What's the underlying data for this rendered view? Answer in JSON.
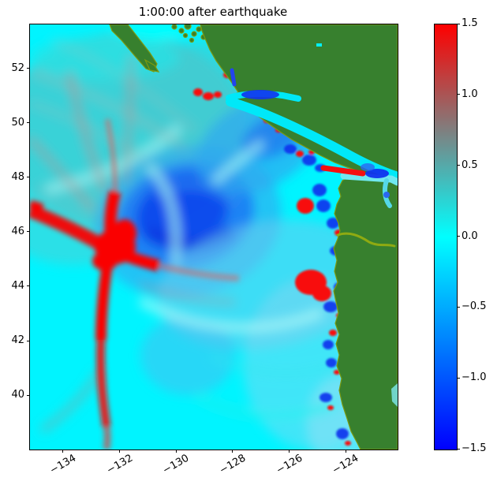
{
  "title": "1:00:00 after earthquake",
  "axes": {
    "x_tick_labels": [
      "−134",
      "−132",
      "−130",
      "−128",
      "−126",
      "−124"
    ],
    "y_tick_labels": [
      "52",
      "50",
      "48",
      "46",
      "44",
      "42",
      "40"
    ],
    "x_tick_rotation_deg": 30
  },
  "colorbar_labels": [
    "1.5",
    "1.0",
    "0.5",
    "0.0",
    "−0.5",
    "−1.0",
    "−1.5"
  ],
  "chart_data": {
    "type": "heatmap",
    "title": "1:00:00 after earthquake",
    "xlabel": "",
    "ylabel": "",
    "x_tick_values": [
      -134,
      -132,
      -130,
      -128,
      -126,
      -124
    ],
    "y_tick_values": [
      52,
      50,
      48,
      46,
      44,
      42,
      40
    ],
    "x_range_est": [
      -135.2,
      -122.2
    ],
    "y_range_est": [
      38.1,
      53.7
    ],
    "grid": false,
    "colorbar": {
      "vmin": -1.5,
      "vmax": 1.5,
      "tick_values": [
        1.5,
        1.0,
        0.5,
        0.0,
        -0.5,
        -1.0,
        -1.5
      ],
      "orientation": "vertical-right",
      "colormap_stops": [
        {
          "value": -1.5,
          "color": "#0000ff"
        },
        {
          "value": 0.0,
          "color": "#00ffff"
        },
        {
          "value": 0.75,
          "color": "#808080"
        },
        {
          "value": 1.5,
          "color": "#ff0000"
        }
      ]
    },
    "colors": {
      "ocean_zero": "#00f4ff",
      "positive_wash": "#49c9cd",
      "depression_core": "#0f46ec",
      "depression_mid": "#1e78f4",
      "light_blue": "#6fcbee",
      "uplift_red": "#fa0505",
      "land_green": "#37802e",
      "shoreline_olive": "#7c9a10",
      "strait_blue": "#1133ee"
    },
    "coarse_grid": {
      "comment": "estimated surface elevation (m) read from colors; null = land",
      "lon": [
        -135,
        -133.5,
        -132,
        -130.5,
        -129,
        -127.5,
        -126,
        -124.5
      ],
      "lat": [
        53,
        51,
        49,
        47,
        45,
        43,
        41,
        39
      ],
      "values": [
        [
          0.1,
          0.15,
          0.2,
          0.1,
          null,
          null,
          null,
          null
        ],
        [
          0.15,
          0.25,
          0.3,
          0.2,
          0.1,
          -0.4,
          null,
          null
        ],
        [
          0.2,
          0.3,
          0.4,
          0.3,
          -0.6,
          -0.9,
          0.6,
          null
        ],
        [
          0.25,
          0.5,
          1.5,
          -0.8,
          -1.3,
          -0.7,
          0.4,
          null
        ],
        [
          0.05,
          0.15,
          1.5,
          0.1,
          -0.3,
          -0.2,
          1.3,
          null
        ],
        [
          0.0,
          0.05,
          0.9,
          0.15,
          0.05,
          -0.1,
          -0.5,
          null
        ],
        [
          0.0,
          0.0,
          0.5,
          0.1,
          0.0,
          -0.05,
          -0.6,
          null
        ],
        [
          0.0,
          0.0,
          0.15,
          0.05,
          0.0,
          0.0,
          -0.2,
          null
        ]
      ]
    },
    "features": [
      "red X-shaped uplift ridge (>1.5 m) centered near lon -131.3, lat 46.2 with arms reaching NW to the domain edge and S toward lat 39",
      "dark blue subsidence basin (about -1.0 to -1.5 m) centered near lon -129.5, lat 47.5",
      "flat cyan (0 m) undisturbed ocean in the southwest of the domain",
      "alternating red and blue reflection spots hugging the Washington-Oregon coast, largest red blob near lat 45.8",
      "green land: Haida Gwaii, BC mainland, Vancouver Island, Washington and Oregon, with cyan Queen Charlotte / Georgia / Juan de Fuca straits and olive shoreline fringe"
    ]
  }
}
